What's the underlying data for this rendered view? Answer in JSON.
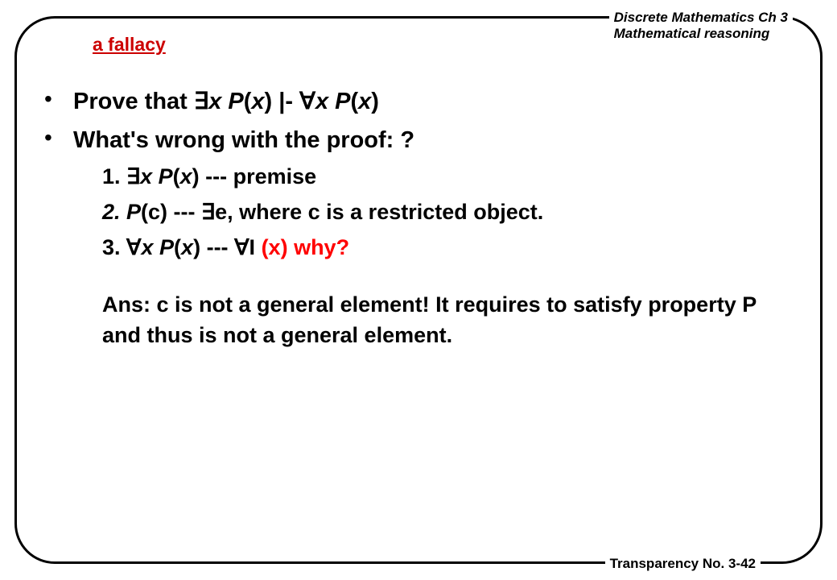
{
  "header": {
    "line1": "Discrete Mathematics Ch 3",
    "line2": "Mathematical reasoning"
  },
  "title": "a fallacy",
  "bullets": {
    "b1_pre": "Prove that  ",
    "b1_ex": "∃",
    "b1_xpx": "x P",
    "b1_paren_open": "(",
    "b1_x": "x",
    "b1_paren_close": ")",
    "b1_turn": "   |-  ",
    "b1_all": "∀",
    "b1_xpx2": "x P",
    "b1_paren_open2": "(",
    "b1_x2": "x",
    "b1_paren_close2": ")",
    "b2": "What's wrong with the proof:  ?"
  },
  "sub": {
    "s1_num": "1.  ",
    "s1_ex": "∃",
    "s1_xp": "x P",
    "s1_po": "(",
    "s1_x": "x",
    "s1_pc": ")",
    "s1_tail": "     --- premise",
    "s2_pre": "2.  P",
    "s2_c": "(c)       --- ",
    "s2_ex": "∃",
    "s2_tail": "e, where c is a restricted object.",
    "s3_num": "3.  ",
    "s3_all": "∀",
    "s3_xp": "x P",
    "s3_po": "(",
    "s3_x": "x",
    "s3_pc": ")",
    "s3_mid": "      --- ",
    "s3_all2": "∀",
    "s3_i": "I ",
    "s3_why": "(x) why?",
    "ans": "Ans: c is not a general element! It requires to satisfy property P and thus is not a general element."
  },
  "footer": "Transparency No. 3-42",
  "colors": {
    "title": "#cc0000",
    "highlight": "#ff0000",
    "text": "#000000",
    "bg": "#ffffff"
  }
}
